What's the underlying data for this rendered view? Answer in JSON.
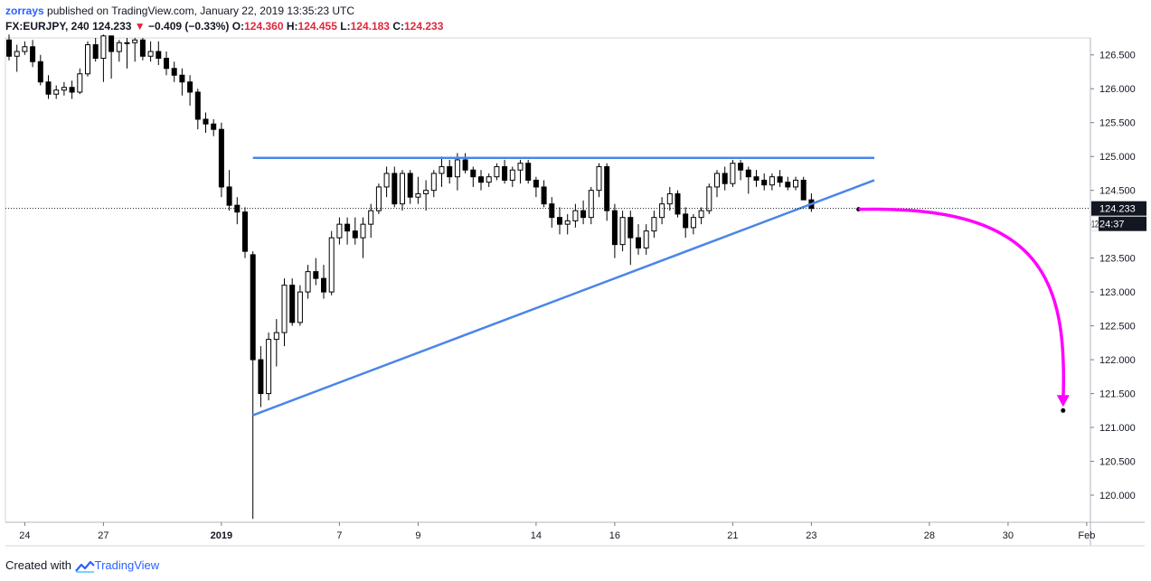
{
  "header": {
    "author": "zorrays",
    "published_text": "published on TradingView.com, January 22, 2019 13:35:23 UTC",
    "symbol": "FX:EURJPY, 240",
    "last": "124.233",
    "change": "−0.409 (−0.33%)",
    "o_label": "O:",
    "o_value": "124.360",
    "h_label": "H:",
    "h_value": "124.455",
    "l_label": "L:",
    "l_value": "124.183",
    "c_label": "C:",
    "c_value": "124.233"
  },
  "footer": {
    "created_with": "Created with",
    "brand": "TradingView"
  },
  "colors": {
    "trendline": "#4a86e8",
    "arrow": "#ff00ff",
    "label_bg": "#131722",
    "text_red": "#e0263c",
    "brand_blue": "#2962ff"
  },
  "chart_data": {
    "type": "candlestick",
    "y_ticks": [
      126.5,
      126.0,
      125.5,
      125.0,
      124.5,
      124.0,
      123.5,
      123.0,
      122.5,
      122.0,
      121.5,
      121.0,
      120.5,
      120.0
    ],
    "y_tick_labels": [
      "126.500",
      "126.000",
      "125.500",
      "125.000",
      "124.500",
      "124.000",
      "123.500",
      "123.000",
      "122.500",
      "122.000",
      "121.500",
      "121.000",
      "120.500",
      "120.000"
    ],
    "ylim": [
      119.6,
      126.75
    ],
    "x_ticks": [
      {
        "label": "24",
        "i": 2,
        "bold": false
      },
      {
        "label": "27",
        "i": 12,
        "bold": false
      },
      {
        "label": "2019",
        "i": 27,
        "bold": true
      },
      {
        "label": "7",
        "i": 42,
        "bold": false
      },
      {
        "label": "9",
        "i": 52,
        "bold": false
      },
      {
        "label": "14",
        "i": 67,
        "bold": false
      },
      {
        "label": "16",
        "i": 77,
        "bold": false
      },
      {
        "label": "21",
        "i": 92,
        "bold": false
      },
      {
        "label": "23",
        "i": 102,
        "bold": false
      },
      {
        "label": "28",
        "i": 117,
        "bold": false
      },
      {
        "label": "30",
        "i": 127,
        "bold": false
      },
      {
        "label": "Feb",
        "i": 137,
        "bold": false
      }
    ],
    "x_total_slots": 140,
    "ohlc": [
      [
        126.72,
        126.8,
        126.42,
        126.48
      ],
      [
        126.48,
        126.65,
        126.25,
        126.55
      ],
      [
        126.55,
        126.7,
        126.5,
        126.62
      ],
      [
        126.62,
        126.72,
        126.32,
        126.4
      ],
      [
        126.4,
        126.5,
        126.05,
        126.1
      ],
      [
        126.1,
        126.2,
        125.85,
        125.92
      ],
      [
        125.92,
        126.05,
        125.85,
        125.98
      ],
      [
        125.98,
        126.1,
        125.9,
        126.02
      ],
      [
        126.02,
        126.12,
        125.85,
        125.95
      ],
      [
        125.95,
        126.3,
        125.92,
        126.22
      ],
      [
        126.22,
        126.7,
        126.18,
        126.65
      ],
      [
        126.65,
        126.75,
        126.4,
        126.45
      ],
      [
        126.45,
        126.8,
        126.1,
        126.78
      ],
      [
        126.78,
        126.75,
        126.15,
        126.55
      ],
      [
        126.55,
        126.72,
        126.4,
        126.68
      ],
      [
        126.68,
        126.75,
        126.3,
        126.68
      ],
      [
        126.68,
        126.75,
        126.4,
        126.72
      ],
      [
        126.72,
        126.75,
        126.42,
        126.48
      ],
      [
        126.48,
        126.7,
        126.4,
        126.55
      ],
      [
        126.55,
        126.7,
        126.35,
        126.45
      ],
      [
        126.45,
        126.55,
        126.2,
        126.3
      ],
      [
        126.3,
        126.4,
        126.1,
        126.2
      ],
      [
        126.2,
        126.3,
        125.9,
        126.1
      ],
      [
        126.1,
        126.2,
        125.75,
        125.95
      ],
      [
        125.95,
        126.0,
        125.4,
        125.55
      ],
      [
        125.55,
        125.65,
        125.35,
        125.48
      ],
      [
        125.48,
        125.55,
        125.3,
        125.4
      ],
      [
        125.4,
        125.5,
        124.4,
        124.55
      ],
      [
        124.55,
        124.8,
        124.2,
        124.28
      ],
      [
        124.28,
        124.4,
        124.0,
        124.18
      ],
      [
        124.18,
        124.25,
        123.5,
        123.6
      ],
      [
        123.55,
        123.6,
        119.65,
        122.0
      ],
      [
        122.0,
        122.2,
        121.3,
        121.5
      ],
      [
        121.5,
        122.4,
        121.4,
        122.3
      ],
      [
        122.3,
        122.6,
        121.9,
        122.4
      ],
      [
        122.4,
        123.2,
        122.2,
        123.1
      ],
      [
        123.1,
        123.2,
        122.5,
        122.55
      ],
      [
        122.55,
        123.1,
        122.5,
        123.0
      ],
      [
        123.0,
        123.4,
        122.9,
        123.3
      ],
      [
        123.3,
        123.5,
        123.1,
        123.2
      ],
      [
        123.2,
        123.4,
        122.9,
        123.0
      ],
      [
        123.0,
        123.9,
        122.95,
        123.8
      ],
      [
        123.8,
        124.1,
        123.7,
        124.0
      ],
      [
        124.0,
        124.1,
        123.7,
        123.9
      ],
      [
        123.9,
        124.1,
        123.7,
        123.8
      ],
      [
        123.8,
        124.1,
        123.5,
        124.0
      ],
      [
        124.0,
        124.3,
        123.8,
        124.2
      ],
      [
        124.2,
        124.6,
        124.15,
        124.55
      ],
      [
        124.55,
        124.85,
        124.4,
        124.75
      ],
      [
        124.75,
        124.85,
        124.25,
        124.3
      ],
      [
        124.3,
        124.8,
        124.2,
        124.75
      ],
      [
        124.75,
        124.8,
        124.3,
        124.4
      ],
      [
        124.4,
        124.7,
        124.3,
        124.45
      ],
      [
        124.45,
        124.65,
        124.2,
        124.5
      ],
      [
        124.5,
        124.8,
        124.4,
        124.75
      ],
      [
        124.75,
        125.0,
        124.55,
        124.85
      ],
      [
        124.85,
        124.95,
        124.6,
        124.7
      ],
      [
        124.7,
        125.05,
        124.5,
        124.95
      ],
      [
        124.95,
        125.05,
        124.75,
        124.8
      ],
      [
        124.8,
        124.85,
        124.55,
        124.7
      ],
      [
        124.7,
        124.8,
        124.5,
        124.62
      ],
      [
        124.62,
        124.75,
        124.55,
        124.7
      ],
      [
        124.7,
        124.9,
        124.65,
        124.85
      ],
      [
        124.85,
        124.95,
        124.6,
        124.65
      ],
      [
        124.65,
        124.85,
        124.55,
        124.8
      ],
      [
        124.8,
        124.95,
        124.6,
        124.9
      ],
      [
        124.9,
        124.95,
        124.6,
        124.65
      ],
      [
        124.65,
        124.7,
        124.4,
        124.55
      ],
      [
        124.55,
        124.65,
        124.25,
        124.3
      ],
      [
        124.3,
        124.4,
        123.95,
        124.1
      ],
      [
        124.1,
        124.25,
        123.85,
        124.0
      ],
      [
        124.0,
        124.15,
        123.85,
        124.05
      ],
      [
        124.05,
        124.3,
        123.95,
        124.2
      ],
      [
        124.2,
        124.35,
        124.0,
        124.1
      ],
      [
        124.1,
        124.55,
        124.0,
        124.5
      ],
      [
        124.5,
        124.9,
        124.4,
        124.85
      ],
      [
        124.85,
        124.9,
        124.05,
        124.2
      ],
      [
        124.2,
        124.3,
        123.5,
        123.7
      ],
      [
        123.7,
        124.2,
        123.6,
        124.1
      ],
      [
        124.1,
        124.2,
        123.4,
        123.8
      ],
      [
        123.8,
        124.0,
        123.55,
        123.65
      ],
      [
        123.65,
        124.0,
        123.55,
        123.9
      ],
      [
        123.9,
        124.2,
        123.8,
        124.1
      ],
      [
        124.1,
        124.4,
        124.0,
        124.3
      ],
      [
        124.3,
        124.55,
        124.2,
        124.45
      ],
      [
        124.45,
        124.5,
        124.1,
        124.15
      ],
      [
        124.15,
        124.25,
        123.8,
        123.95
      ],
      [
        123.95,
        124.15,
        123.85,
        124.1
      ],
      [
        124.1,
        124.25,
        124.0,
        124.2
      ],
      [
        124.2,
        124.6,
        124.15,
        124.55
      ],
      [
        124.55,
        124.8,
        124.4,
        124.75
      ],
      [
        124.75,
        124.85,
        124.5,
        124.6
      ],
      [
        124.6,
        124.95,
        124.55,
        124.9
      ],
      [
        124.9,
        124.95,
        124.65,
        124.8
      ],
      [
        124.8,
        124.85,
        124.45,
        124.7
      ],
      [
        124.7,
        124.8,
        124.55,
        124.65
      ],
      [
        124.65,
        124.75,
        124.5,
        124.58
      ],
      [
        124.58,
        124.75,
        124.5,
        124.7
      ],
      [
        124.7,
        124.8,
        124.55,
        124.62
      ],
      [
        124.62,
        124.7,
        124.5,
        124.55
      ],
      [
        124.55,
        124.7,
        124.5,
        124.65
      ],
      [
        124.65,
        124.7,
        124.4,
        124.36
      ],
      [
        124.36,
        124.455,
        124.183,
        124.233
      ]
    ],
    "horizontal_line": {
      "value": 124.98,
      "from_i": 31,
      "to_i": 110
    },
    "trendline": {
      "p1": {
        "i": 31,
        "v": 121.18
      },
      "p2": {
        "i": 110,
        "v": 124.65
      }
    },
    "last_price": {
      "value": 124.233,
      "label": "124.233"
    },
    "countdown_label": "24:37",
    "countdown_prefix": "12",
    "forecast": {
      "start": {
        "i": 108,
        "v": 124.22
      },
      "end": {
        "i": 134,
        "v": 121.25
      }
    }
  }
}
